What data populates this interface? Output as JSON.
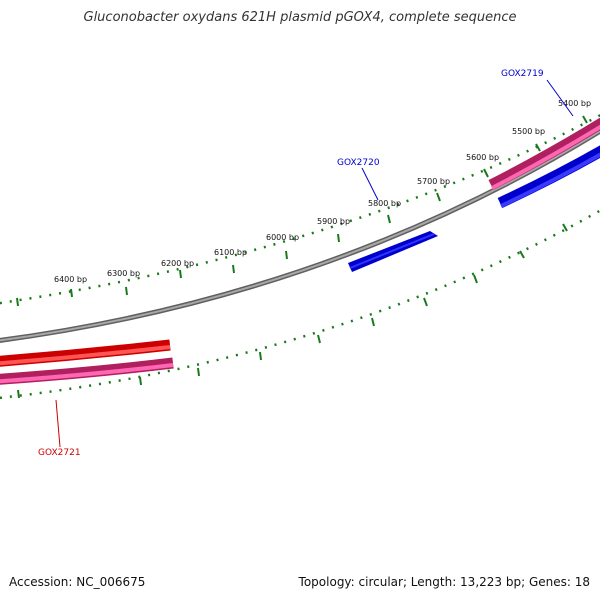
{
  "title": "Gluconobacter oxydans 621H plasmid pGOX4, complete sequence",
  "footer": {
    "accession": "Accession: NC_006675",
    "summary": "Topology: circular; Length: 13,223 bp; Genes: 18"
  },
  "scale_labels": [
    "5400 bp",
    "5500 bp",
    "5600 bp",
    "5700 bp",
    "5800 bp",
    "5900 bp",
    "6000 bp",
    "6100 bp",
    "6200 bp",
    "6300 bp",
    "6400 bp"
  ],
  "genes": [
    {
      "name": "GOX2719",
      "color": "#0000cc"
    },
    {
      "name": "GOX2720",
      "color": "#0000cc"
    },
    {
      "name": "GOX2721",
      "color": "#cc0000"
    }
  ],
  "colors": {
    "backbone": "#808080",
    "ticks": "#1a7a1a",
    "forward_gene": "#0000ee",
    "reverse_gene": "#ff1a1a",
    "cds": "#ff3399"
  }
}
